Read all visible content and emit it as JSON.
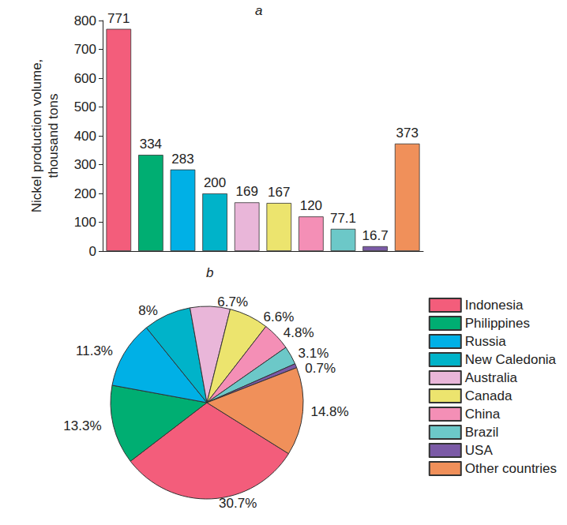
{
  "chart_data": [
    {
      "type": "bar",
      "title": "a",
      "y_label": "Nickel production volume,\nthousand tons",
      "categories": [
        null,
        null,
        null,
        null,
        null,
        null,
        null,
        null,
        null,
        null
      ],
      "values": [
        771,
        334,
        283,
        200,
        169,
        167,
        120,
        77.1,
        16.7,
        373
      ],
      "colors": [
        "#f35d7b",
        "#00ae72",
        "#00b0e6",
        "#00b3c9",
        "#e9b6d9",
        "#ece46e",
        "#f48fb6",
        "#6cc8c8",
        "#7b5aa6",
        "#f0905a"
      ],
      "ylim": [
        0,
        800
      ],
      "yticks": [
        0,
        100,
        200,
        300,
        400,
        500,
        600,
        700,
        800
      ],
      "grid": false,
      "data_labels": true,
      "tick_labels": "y"
    },
    {
      "type": "pie",
      "title": "b",
      "categories": [
        "Indonesia",
        "Philippines",
        "Russia",
        "New Caledonia",
        "Australia",
        "Canada",
        "China",
        "Brazil",
        "USA",
        "Other countries"
      ],
      "values": [
        30.7,
        13.3,
        11.3,
        8,
        6.7,
        6.6,
        4.8,
        3.1,
        0.7,
        14.8
      ],
      "value_labels": [
        "30.7%",
        "13.3%",
        "11.3%",
        "8%",
        "6.7%",
        "6.6%",
        "4.8%",
        "3.1%",
        "0.7%",
        "14.8%"
      ],
      "colors": [
        "#f35d7b",
        "#00ae72",
        "#00b0e6",
        "#00b3c9",
        "#e9b6d9",
        "#ece46e",
        "#f48fb6",
        "#6cc8c8",
        "#7b5aa6",
        "#f0905a"
      ],
      "legend": "right",
      "data_labels": true
    }
  ]
}
